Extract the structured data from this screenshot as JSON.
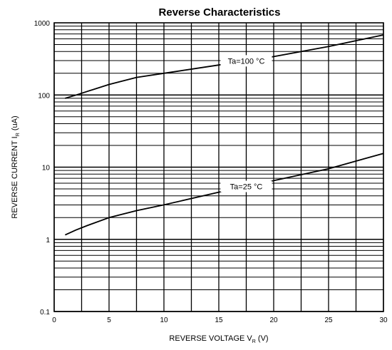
{
  "chart_data": {
    "type": "line",
    "title": "Reverse Characteristics",
    "xlabel": "REVERSE VOLTAGE",
    "xlabel_symbol": "V",
    "xlabel_subscript": "R",
    "xlabel_unit": "(V)",
    "ylabel": "REVERSE CURRENT",
    "ylabel_symbol": "I",
    "ylabel_subscript": "R",
    "ylabel_unit": "(uA)",
    "xlim": [
      0,
      30
    ],
    "ylim": [
      0.1,
      1000
    ],
    "y_scale": "log",
    "grid": true,
    "x_ticks": [
      "0",
      "5",
      "10",
      "15",
      "20",
      "25",
      "30"
    ],
    "y_ticks": [
      "0.1",
      "1",
      "10",
      "100",
      "1000"
    ],
    "series": [
      {
        "name": "Ta=100 °C",
        "x": [
          1,
          2,
          3,
          5,
          7.5,
          10,
          15,
          20,
          25,
          30
        ],
        "values": [
          90,
          100,
          112,
          140,
          175,
          200,
          260,
          340,
          470,
          680
        ]
      },
      {
        "name": "Ta=25 °C",
        "x": [
          1,
          2,
          3,
          5,
          7.5,
          10,
          15,
          20,
          25,
          30
        ],
        "values": [
          1.15,
          1.35,
          1.55,
          2.0,
          2.5,
          3.0,
          4.5,
          6.5,
          9.5,
          15.5
        ]
      }
    ],
    "annotations": [
      {
        "text": "Ta=100 °C",
        "series": 0,
        "x": 17.5
      },
      {
        "text": "Ta=25 °C",
        "series": 1,
        "x": 17.5
      }
    ]
  }
}
